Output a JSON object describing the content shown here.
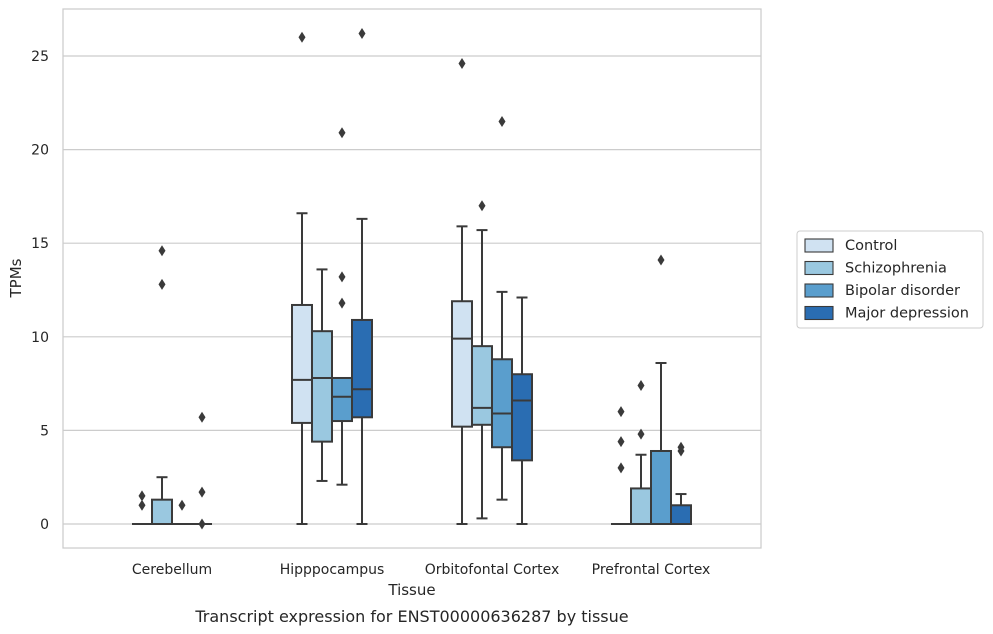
{
  "chart_data": {
    "type": "box",
    "title": "",
    "caption": "Transcript expression for ENST00000636287 by tissue",
    "xlabel": "Tissue",
    "ylabel": "TPMs",
    "ylim": [
      -1.25,
      27.5
    ],
    "yticks": [
      0,
      5,
      10,
      15,
      20,
      25
    ],
    "grid": "horizontal",
    "legend_position": "right",
    "categories": [
      "Cerebellum",
      "Hipppocampus",
      "Orbitofontal Cortex",
      "Prefrontal Cortex"
    ],
    "series": [
      {
        "name": "Control",
        "color": "#d0e2f2",
        "boxes": [
          {
            "whislo": 0,
            "q1": 0,
            "med": 0,
            "q3": 0,
            "whishi": 0,
            "fliers": [
              1.5,
              1.0
            ]
          },
          {
            "whislo": 0,
            "q1": 5.4,
            "med": 7.7,
            "q3": 11.7,
            "whishi": 16.6,
            "fliers": [
              26.0
            ]
          },
          {
            "whislo": 0,
            "q1": 5.2,
            "med": 9.9,
            "q3": 11.9,
            "whishi": 15.9,
            "fliers": [
              24.6
            ]
          },
          {
            "whislo": 0,
            "q1": 0,
            "med": 0,
            "q3": 0,
            "whishi": 0,
            "fliers": [
              6.0,
              4.4,
              3.0
            ]
          }
        ]
      },
      {
        "name": "Schizophrenia",
        "color": "#9ac8e0",
        "boxes": [
          {
            "whislo": 0,
            "q1": 0,
            "med": 0,
            "q3": 1.3,
            "whishi": 2.5,
            "fliers": [
              14.6,
              12.8
            ]
          },
          {
            "whislo": 2.3,
            "q1": 4.4,
            "med": 7.8,
            "q3": 10.3,
            "whishi": 13.6,
            "fliers": []
          },
          {
            "whislo": 0.3,
            "q1": 5.3,
            "med": 6.2,
            "q3": 9.5,
            "whishi": 15.7,
            "fliers": [
              17.0
            ]
          },
          {
            "whislo": 0,
            "q1": 0,
            "med": 0,
            "q3": 1.9,
            "whishi": 3.7,
            "fliers": [
              7.4,
              4.8
            ]
          }
        ]
      },
      {
        "name": "Bipolar disorder",
        "color": "#5a9ecd",
        "boxes": [
          {
            "whislo": 0,
            "q1": 0,
            "med": 0,
            "q3": 0,
            "whishi": 0,
            "fliers": [
              1.0
            ]
          },
          {
            "whislo": 2.1,
            "q1": 5.5,
            "med": 6.8,
            "q3": 7.8,
            "whishi": 7.8,
            "fliers": [
              20.9,
              13.2,
              11.8
            ]
          },
          {
            "whislo": 1.3,
            "q1": 4.1,
            "med": 5.9,
            "q3": 8.8,
            "whishi": 12.4,
            "fliers": [
              21.5
            ]
          },
          {
            "whislo": 0,
            "q1": 0,
            "med": 0,
            "q3": 3.9,
            "whishi": 8.6,
            "fliers": [
              14.1
            ]
          }
        ]
      },
      {
        "name": "Major depression",
        "color": "#2a6db2",
        "boxes": [
          {
            "whislo": 0,
            "q1": 0,
            "med": 0,
            "q3": 0,
            "whishi": 0,
            "fliers": [
              5.7,
              1.7,
              0.0
            ]
          },
          {
            "whislo": 0,
            "q1": 5.7,
            "med": 7.2,
            "q3": 10.9,
            "whishi": 16.3,
            "fliers": [
              26.2
            ]
          },
          {
            "whislo": 0,
            "q1": 3.4,
            "med": 6.6,
            "q3": 8.0,
            "whishi": 12.1,
            "fliers": []
          },
          {
            "whislo": 0,
            "q1": 0,
            "med": 0,
            "q3": 1.0,
            "whishi": 1.6,
            "fliers": [
              4.1,
              3.9
            ]
          }
        ]
      }
    ]
  }
}
